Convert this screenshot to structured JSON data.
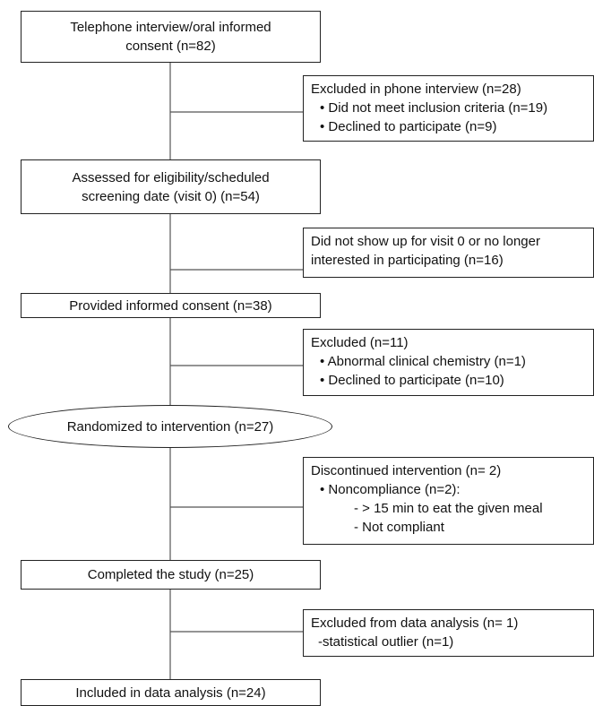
{
  "steps": {
    "telephone": {
      "line1": "Telephone interview/oral informed",
      "line2": "consent (n=82)"
    },
    "assessed": {
      "line1": "Assessed for eligibility/scheduled",
      "line2": "screening date (visit 0) (n=54)"
    },
    "consent": {
      "label": "Provided informed consent (n=38)"
    },
    "randomized": {
      "label": "Randomized to intervention (n=27)"
    },
    "completed": {
      "label": "Completed the study (n=25)"
    },
    "included": {
      "label": "Included in data analysis (n=24)"
    }
  },
  "exclusions": {
    "phone": {
      "title": "Excluded in phone interview (n=28)",
      "items": [
        "• Did not meet inclusion criteria (n=19)",
        "• Declined to participate (n=9)"
      ]
    },
    "noshow": {
      "line1": "Did not show up for visit 0 or no longer",
      "line2": "interested in participating (n=16)"
    },
    "excluded": {
      "title": "Excluded (n=11)",
      "items": [
        "• Abnormal clinical chemistry (n=1)",
        "• Declined to participate (n=10)"
      ]
    },
    "discontinued": {
      "title": "Discontinued intervention (n= 2)",
      "item": "• Noncompliance (n=2):",
      "subitems": [
        "- > 15 min to eat the given meal",
        "- Not compliant"
      ]
    },
    "analysis": {
      "title": "Excluded from data analysis (n= 1)",
      "item": "-statistical outlier (n=1)"
    }
  }
}
